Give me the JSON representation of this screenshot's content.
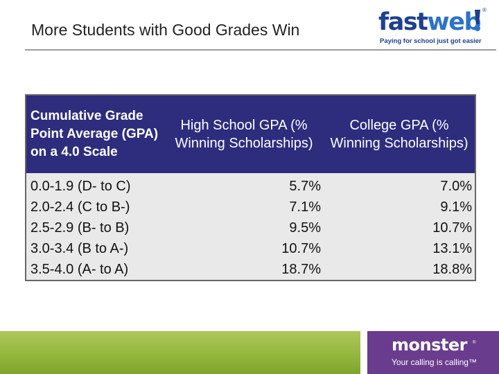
{
  "slide": {
    "title": "More Students with Good Grades Win"
  },
  "logos": {
    "fastweb": {
      "word_fast": "fast",
      "word_web": "web",
      "mark": "®",
      "tagline": "Paying for school just got easier",
      "colors": {
        "dark": "#1f3f8f",
        "light": "#2d72c9"
      }
    },
    "monster": {
      "word": "monster",
      "mark": "®",
      "tagline": "Your calling is calling™",
      "background": "#6a3c8e"
    }
  },
  "table": {
    "headers": {
      "range": "Cumulative Grade Point Average (GPA) on a 4.0 Scale",
      "high_school": "High School GPA (% Winning Scholarships)",
      "college": "College GPA (% Winning Scholarships)"
    },
    "rows": [
      {
        "range": "0.0-1.9 (D- to C)",
        "high_school": "5.7%",
        "college": "7.0%"
      },
      {
        "range": "2.0-2.4 (C to B-)",
        "high_school": "7.1%",
        "college": "9.1%"
      },
      {
        "range": "2.5-2.9 (B- to B)",
        "high_school": "9.5%",
        "college": "10.7%"
      },
      {
        "range": "3.0-3.4 (B to A-)",
        "high_school": "10.7%",
        "college": "13.1%"
      },
      {
        "range": "3.5-4.0 (A- to A)",
        "high_school": "18.7%",
        "college": "18.8%"
      }
    ],
    "colors": {
      "header_bg": "#2e2c7d",
      "body_bg": "#e9e9e9"
    }
  },
  "footer": {
    "green_bar_color": "#94b73e"
  }
}
